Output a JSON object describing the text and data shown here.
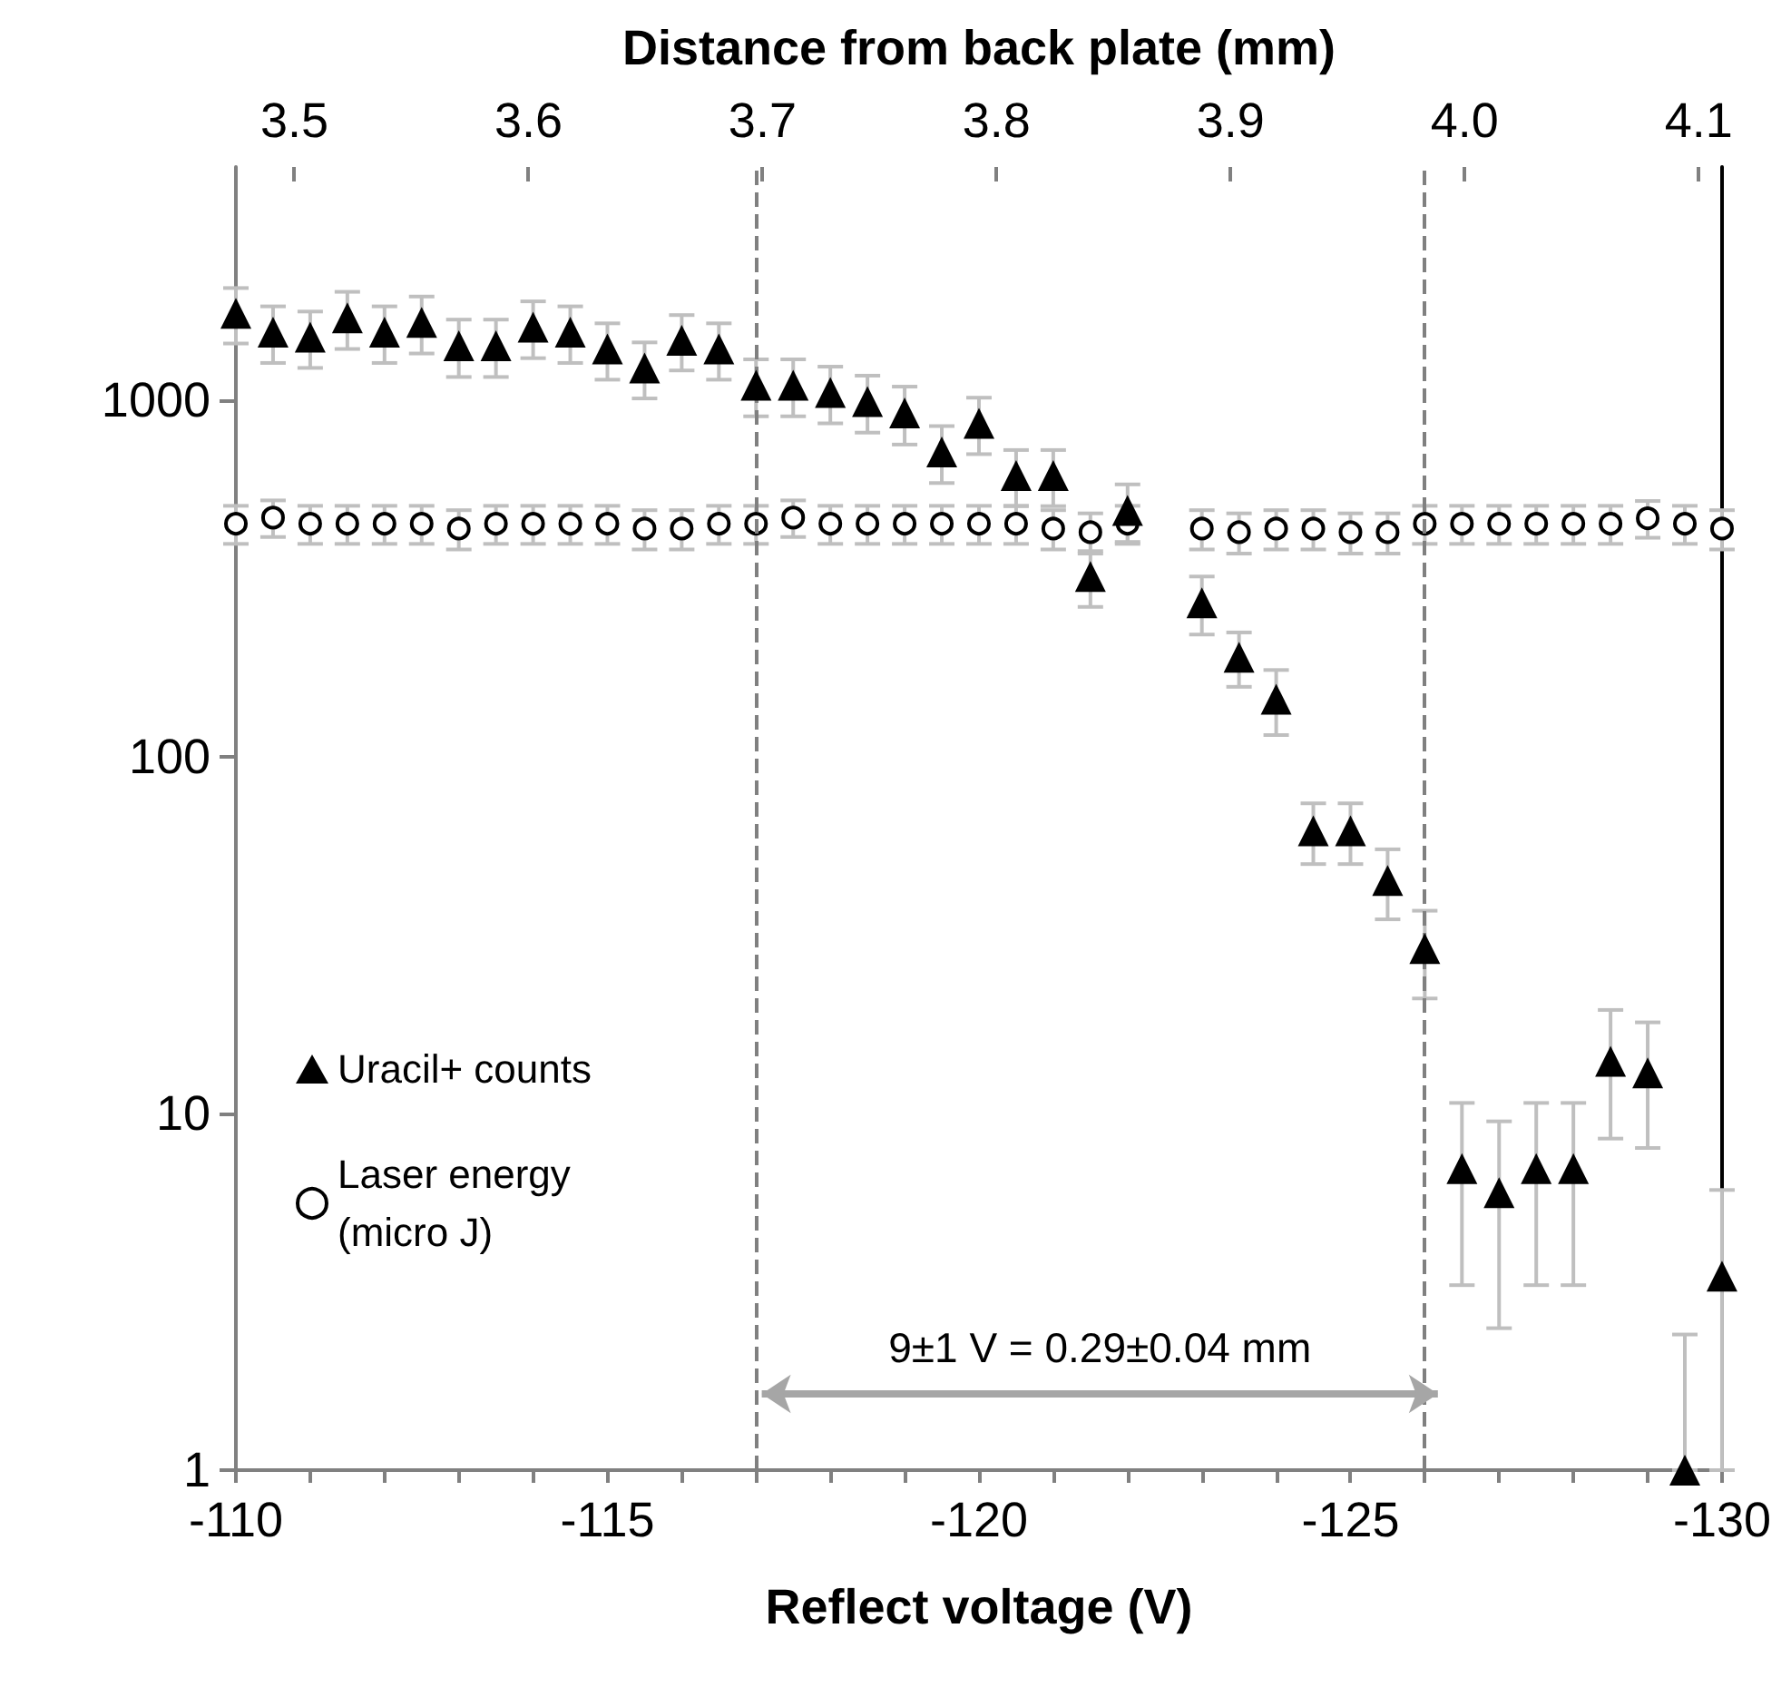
{
  "chart_data": {
    "type": "scatter",
    "xlabel": "Reflect voltage (V)",
    "x2label": "Distance from back plate (mm)",
    "x": [
      -110,
      -110.5,
      -111,
      -111.5,
      -112,
      -112.5,
      -113,
      -113.5,
      -114,
      -114.5,
      -115,
      -115.5,
      -116,
      -116.5,
      -117,
      -117.5,
      -118,
      -118.5,
      -119,
      -119.5,
      -120,
      -120.5,
      -121,
      -121.5,
      -122,
      -122.5,
      -123,
      -123.5,
      -124,
      -124.5,
      -125,
      -125.5,
      -126,
      -126.5,
      -127,
      -127.5,
      -128,
      -128.5,
      -129,
      -129.5,
      -130
    ],
    "series": [
      {
        "name": "Uracil+ counts",
        "color": "#000000",
        "marker": "triangle",
        "values": [
          1750,
          1550,
          1500,
          1700,
          1550,
          1650,
          1420,
          1420,
          1600,
          1550,
          1390,
          1230,
          1470,
          1390,
          1100,
          1100,
          1050,
          990,
          920,
          715,
          860,
          614,
          614,
          320,
          490,
          null,
          270,
          190,
          145,
          62,
          62,
          45,
          29,
          7,
          6,
          7,
          7,
          14,
          13,
          1,
          3.5
        ],
        "errors": [
          310,
          280,
          270,
          310,
          280,
          300,
          260,
          260,
          290,
          280,
          250,
          220,
          260,
          250,
          200,
          200,
          190,
          180,
          170,
          130,
          155,
          110,
          110,
          57,
          90,
          null,
          50,
          33,
          30,
          12,
          12,
          10,
          8,
          3.7,
          3.5,
          3.7,
          3.7,
          5.5,
          5,
          [
            1,
            2.4
          ],
          [
            1,
            6.1
          ]
        ]
      },
      {
        "name": "Laser energy (micro J)",
        "color": "#000000",
        "marker": "circle",
        "values": [
          450,
          468,
          450,
          450,
          450,
          450,
          436,
          450,
          450,
          450,
          450,
          436,
          436,
          450,
          450,
          468,
          450,
          450,
          450,
          450,
          450,
          450,
          436,
          426,
          450,
          null,
          436,
          426,
          436,
          436,
          426,
          426,
          450,
          450,
          450,
          450,
          450,
          450,
          466,
          450,
          436
        ],
        "errors": [
          55,
          55,
          55,
          55,
          55,
          55,
          55,
          55,
          55,
          55,
          55,
          55,
          55,
          55,
          55,
          55,
          55,
          55,
          55,
          55,
          55,
          55,
          55,
          55,
          55,
          null,
          55,
          55,
          55,
          55,
          55,
          55,
          55,
          55,
          55,
          55,
          55,
          55,
          55,
          55,
          55
        ]
      }
    ],
    "xlim": [
      -110,
      -130
    ],
    "xticks": [
      -110,
      {
        "value": -111,
        "label": null
      },
      {
        "value": -112,
        "label": null
      },
      {
        "value": -113,
        "label": null
      },
      {
        "value": -114,
        "label": null
      },
      -115,
      {
        "value": -116,
        "label": null
      },
      {
        "value": -117,
        "label": null
      },
      {
        "value": -118,
        "label": null
      },
      {
        "value": -119,
        "label": null
      },
      -120,
      {
        "value": -121,
        "label": null
      },
      {
        "value": -122,
        "label": null
      },
      {
        "value": -123,
        "label": null
      },
      {
        "value": -124,
        "label": null
      },
      -125,
      {
        "value": -126,
        "label": null
      },
      {
        "value": -127,
        "label": null
      },
      {
        "value": -128,
        "label": null
      },
      {
        "value": -129,
        "label": null
      },
      -130
    ],
    "x2lim": [
      3.475,
      4.11
    ],
    "x2ticks": [
      3.5,
      3.6,
      3.7,
      3.8,
      3.9,
      {
        "value": 4,
        "label": "4.0"
      },
      4.1
    ],
    "ylim": [
      1,
      4500
    ],
    "yticks": [
      1,
      10,
      100,
      1000
    ],
    "log": "y",
    "ref_lines": [
      {
        "axis": "x",
        "value": -117,
        "color": "#808080",
        "line_style": "dashed"
      },
      {
        "axis": "x",
        "value": -126,
        "color": "#808080",
        "line_style": "dashed"
      }
    ],
    "annotations": [
      "9±1 V = 0.29±0.04 mm"
    ],
    "grid": false,
    "legend": "left"
  }
}
